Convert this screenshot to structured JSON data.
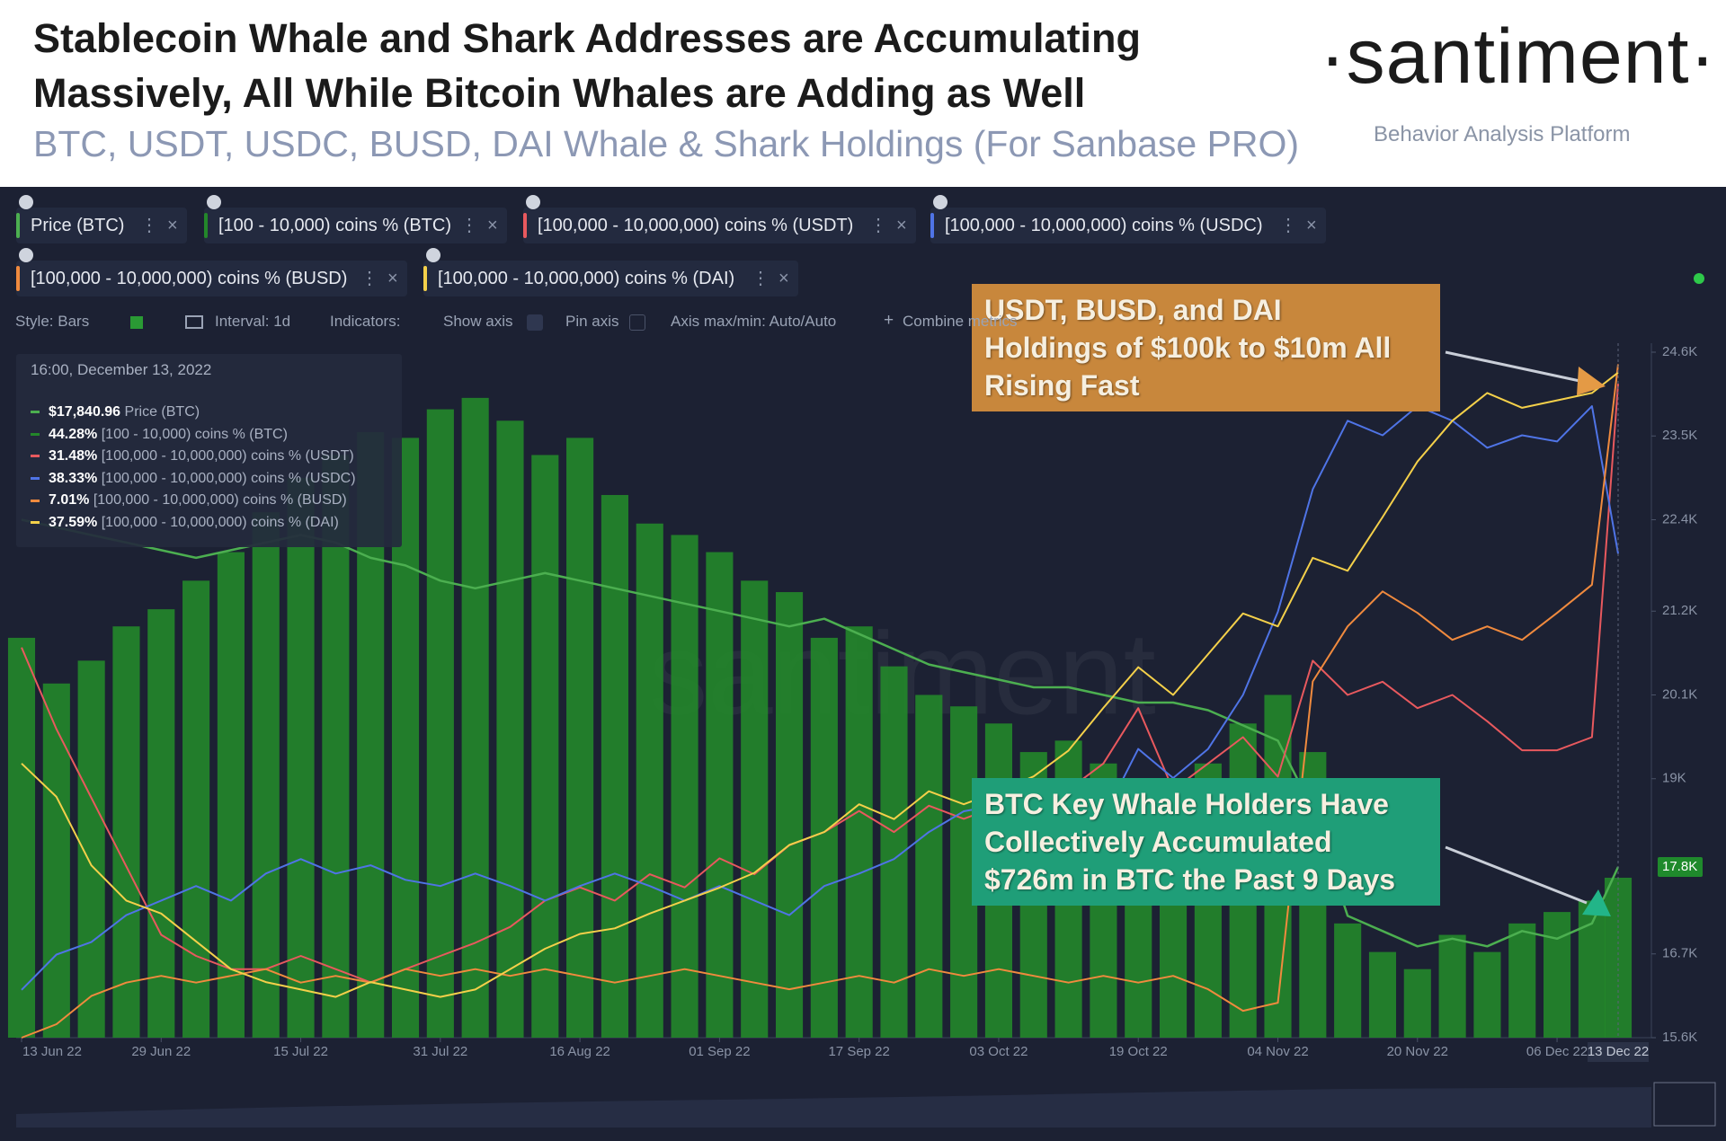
{
  "header": {
    "title": "Stablecoin Whale and Shark Addresses are Accumulating\nMassively, All While Bitcoin Whales are Adding as Well",
    "subtitle": "BTC, USDT, USDC, BUSD, DAI Whale & Shark Holdings (For Sanbase PRO)",
    "logo": "·santiment·",
    "tagline": "Behavior Analysis Platform"
  },
  "toolbar": [
    "Style: Bars",
    "Interval: 1d",
    "Indicators:",
    "Show axis",
    "Pin axis",
    "Axis max/min: Auto/Auto",
    "Combine metrics"
  ],
  "chart_data": {
    "type": "combo",
    "watermark": "santiment",
    "x": [
      "2022-06-13",
      "2022-06-17",
      "2022-06-21",
      "2022-06-25",
      "2022-06-29",
      "2022-07-03",
      "2022-07-07",
      "2022-07-11",
      "2022-07-15",
      "2022-07-19",
      "2022-07-23",
      "2022-07-27",
      "2022-07-31",
      "2022-08-04",
      "2022-08-08",
      "2022-08-12",
      "2022-08-16",
      "2022-08-20",
      "2022-08-24",
      "2022-08-28",
      "2022-09-01",
      "2022-09-05",
      "2022-09-09",
      "2022-09-13",
      "2022-09-17",
      "2022-09-21",
      "2022-09-25",
      "2022-09-29",
      "2022-10-03",
      "2022-10-07",
      "2022-10-11",
      "2022-10-15",
      "2022-10-19",
      "2022-10-23",
      "2022-10-27",
      "2022-10-31",
      "2022-11-04",
      "2022-11-08",
      "2022-11-12",
      "2022-11-16",
      "2022-11-20",
      "2022-11-24",
      "2022-11-28",
      "2022-12-02",
      "2022-12-06",
      "2022-12-10",
      "2022-12-13"
    ],
    "xticks": [
      {
        "value": "2022-06-13",
        "label": "13 Jun 22"
      },
      {
        "value": "2022-06-29",
        "label": "29 Jun 22"
      },
      {
        "value": "2022-07-15",
        "label": "15 Jul 22"
      },
      {
        "value": "2022-07-31",
        "label": "31 Jul 22"
      },
      {
        "value": "2022-08-16",
        "label": "16 Aug 22"
      },
      {
        "value": "2022-09-01",
        "label": "01 Sep 22"
      },
      {
        "value": "2022-09-17",
        "label": "17 Sep 22"
      },
      {
        "value": "2022-10-03",
        "label": "03 Oct 22"
      },
      {
        "value": "2022-10-19",
        "label": "19 Oct 22"
      },
      {
        "value": "2022-11-04",
        "label": "04 Nov 22"
      },
      {
        "value": "2022-11-20",
        "label": "20 Nov 22"
      },
      {
        "value": "2022-12-06",
        "label": "06 Dec 22"
      }
    ],
    "cursor_label": "13 Dec 22",
    "ylim": [
      15600,
      24600
    ],
    "yticks": [
      {
        "value": 15600,
        "label": "15.6K"
      },
      {
        "value": 16700,
        "label": "16.7K"
      },
      {
        "value": 19000,
        "label": "19K"
      },
      {
        "value": 20100,
        "label": "20.1K"
      },
      {
        "value": 21200,
        "label": "21.2K"
      },
      {
        "value": 22400,
        "label": "22.4K"
      },
      {
        "value": 23500,
        "label": "23.5K"
      },
      {
        "value": 24600,
        "label": "24.6K"
      }
    ],
    "current_price_label": "17.8K",
    "series": [
      {
        "name": "Price (BTC)",
        "type": "line",
        "color": "#4caf50",
        "values": [
          22400,
          22300,
          22200,
          22100,
          22000,
          21900,
          22000,
          22100,
          22200,
          22100,
          21900,
          21800,
          21600,
          21500,
          21600,
          21700,
          21600,
          21500,
          21400,
          21300,
          21200,
          21100,
          21000,
          21100,
          20900,
          20700,
          20500,
          20400,
          20300,
          20200,
          20200,
          20100,
          20000,
          20000,
          19900,
          19700,
          19500,
          18600,
          17200,
          17000,
          16800,
          16900,
          16800,
          17000,
          16900,
          17100,
          17840.96
        ]
      },
      {
        "name": "[100 - 10,000) coins % (BTC)",
        "type": "bar",
        "color": "#23872a",
        "ylim": [
          44.0,
          45.2
        ],
        "values": [
          44.7,
          44.62,
          44.66,
          44.72,
          44.75,
          44.8,
          44.85,
          44.92,
          44.98,
          45.02,
          45.06,
          45.05,
          45.1,
          45.12,
          45.08,
          45.02,
          45.05,
          44.95,
          44.9,
          44.88,
          44.85,
          44.8,
          44.78,
          44.7,
          44.72,
          44.65,
          44.6,
          44.58,
          44.55,
          44.5,
          44.52,
          44.48,
          44.45,
          44.42,
          44.48,
          44.55,
          44.6,
          44.5,
          44.2,
          44.15,
          44.12,
          44.18,
          44.15,
          44.2,
          44.22,
          44.24,
          44.28
        ]
      },
      {
        "name": "[100,000 - 10,000,000) coins % (USDT)",
        "type": "line",
        "color": "#e8595e",
        "ylim": [
          29.0,
          31.6
        ],
        "values": [
          30.48,
          30.17,
          29.91,
          29.65,
          29.39,
          29.31,
          29.26,
          29.26,
          29.31,
          29.26,
          29.21,
          29.26,
          29.31,
          29.36,
          29.42,
          29.52,
          29.57,
          29.52,
          29.62,
          29.57,
          29.68,
          29.62,
          29.73,
          29.78,
          29.86,
          29.78,
          29.88,
          29.83,
          29.88,
          29.83,
          29.94,
          30.04,
          30.25,
          29.94,
          30.04,
          30.14,
          29.99,
          30.43,
          30.3,
          30.35,
          30.25,
          30.3,
          30.2,
          30.09,
          30.09,
          30.14,
          31.48
        ]
      },
      {
        "name": "[100,000 - 10,000,000) coins % (USDC)",
        "type": "line",
        "color": "#4f74e6",
        "ylim": [
          36.0,
          39.3
        ],
        "values": [
          36.23,
          36.4,
          36.46,
          36.59,
          36.66,
          36.73,
          36.66,
          36.79,
          36.86,
          36.79,
          36.83,
          36.76,
          36.73,
          36.79,
          36.73,
          36.66,
          36.73,
          36.79,
          36.73,
          36.66,
          36.73,
          36.66,
          36.59,
          36.73,
          36.79,
          36.86,
          36.99,
          37.09,
          37.12,
          37.19,
          37.12,
          37.06,
          37.39,
          37.25,
          37.39,
          37.65,
          38.05,
          38.64,
          38.97,
          38.9,
          39.04,
          38.97,
          38.84,
          38.9,
          38.87,
          39.04,
          38.33
        ]
      },
      {
        "name": "[100,000 - 10,000,000) coins % (BUSD)",
        "type": "line",
        "color": "#f08a3e",
        "ylim": [
          2.0,
          7.1
        ],
        "values": [
          2.0,
          2.1,
          2.31,
          2.41,
          2.46,
          2.41,
          2.46,
          2.51,
          2.41,
          2.46,
          2.41,
          2.51,
          2.46,
          2.51,
          2.46,
          2.51,
          2.46,
          2.41,
          2.46,
          2.51,
          2.46,
          2.41,
          2.36,
          2.41,
          2.46,
          2.41,
          2.51,
          2.46,
          2.51,
          2.46,
          2.41,
          2.46,
          2.41,
          2.46,
          2.36,
          2.2,
          2.26,
          4.65,
          5.06,
          5.32,
          5.16,
          4.96,
          5.06,
          4.96,
          5.16,
          5.37,
          7.01
        ]
      },
      {
        "name": "[100,000 - 10,000,000) coins % (DAI)",
        "type": "line",
        "color": "#f4d04a",
        "ylim": [
          34.0,
          37.7
        ],
        "values": [
          35.48,
          35.3,
          34.93,
          34.74,
          34.67,
          34.52,
          34.37,
          34.3,
          34.26,
          34.22,
          34.3,
          34.26,
          34.22,
          34.26,
          34.37,
          34.48,
          34.56,
          34.59,
          34.67,
          34.74,
          34.81,
          34.89,
          35.04,
          35.11,
          35.26,
          35.18,
          35.33,
          35.26,
          35.33,
          35.41,
          35.55,
          35.78,
          36.0,
          35.85,
          36.07,
          36.29,
          36.22,
          36.59,
          36.52,
          36.81,
          37.11,
          37.33,
          37.48,
          37.4,
          37.44,
          37.48,
          37.59
        ]
      }
    ],
    "tooltip": {
      "title": "16:00, December 13, 2022",
      "values": [
        "$17,840.96",
        "44.28%",
        "31.48%",
        "38.33%",
        "7.01%",
        "37.59%"
      ]
    },
    "annotations": [
      {
        "text": "USDT, BUSD, and DAI\nHoldings of $100k to $10m All\nRising Fast"
      },
      {
        "text": "BTC Key Whale Holders Have\nCollectively Accumulated\n$726m in BTC the Past 9 Days"
      }
    ]
  }
}
